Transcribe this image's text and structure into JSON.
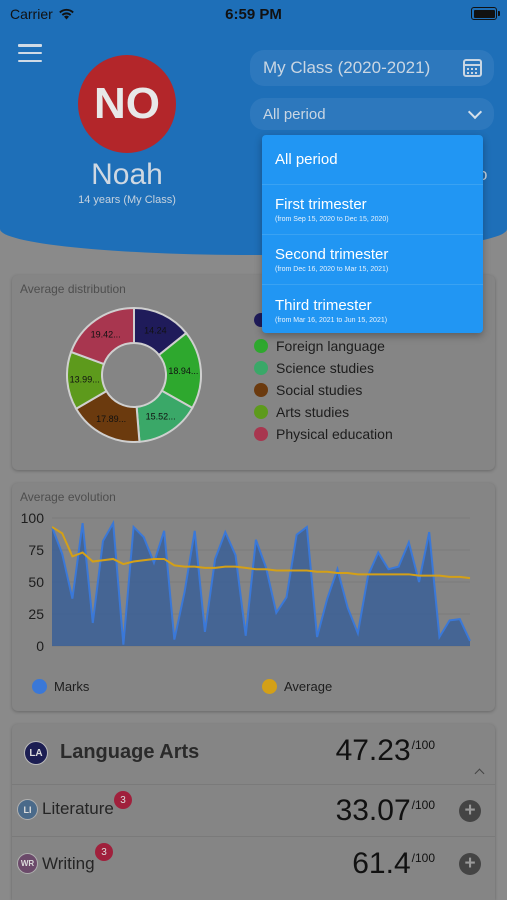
{
  "status_bar": {
    "carrier": "Carrier",
    "time": "6:59 PM"
  },
  "header": {
    "avatar_initials": "NO",
    "student_name": "Noah",
    "student_sub": "14 years (My Class)",
    "class_selector": "My Class (2020-2021)",
    "period_selector": "All period",
    "behind_letter": "o"
  },
  "colors": {
    "header_blue": "#1e6fb8",
    "dropdown_blue": "#2196f3",
    "marks_blue": "#3a78d8",
    "average_yellow": "#d4a017",
    "avatar_red": "#b3262a"
  },
  "dropdown": {
    "items": [
      {
        "label": "All period",
        "sub": ""
      },
      {
        "label": "First trimester",
        "sub": "(from Sep 15, 2020 to Dec 15, 2020)"
      },
      {
        "label": "Second trimester",
        "sub": "(from Dec 16, 2020 to Mar 15, 2021)"
      },
      {
        "label": "Third trimester",
        "sub": "(from Mar 16, 2021 to Jun 15, 2021)"
      }
    ]
  },
  "distribution": {
    "title": "Average distribution",
    "legend_visible": [
      "Foreign language",
      "Science studies",
      "Social studies",
      "Arts studies",
      "Physical education"
    ]
  },
  "evolution": {
    "title": "Average evolution",
    "legend": {
      "marks": "Marks",
      "average": "Average"
    }
  },
  "subjects": {
    "main": {
      "badge": "LA",
      "name": "Language Arts",
      "score": "47.23",
      "scale": "/100"
    },
    "literature": {
      "badge": "LI",
      "name": "Literature",
      "count": "3",
      "score": "33.07",
      "scale": "/100"
    },
    "writing": {
      "badge": "WR",
      "name": "Writing",
      "count": "3",
      "score": "61.4",
      "scale": "/100"
    }
  },
  "chart_data": [
    {
      "type": "pie",
      "title": "Average distribution",
      "categories": [
        "",
        "Foreign language",
        "Science studies",
        "Social studies",
        "Arts studies",
        "Physical education"
      ],
      "values": [
        14.24,
        18.94,
        15.52,
        17.89,
        13.99,
        19.42
      ],
      "labels": [
        "14.24",
        "18.94...",
        "15.52...",
        "17.89...",
        "13.99...",
        "19.42..."
      ],
      "colors": [
        "#1f1b5a",
        "#2ea82e",
        "#3aa868",
        "#6b3a0e",
        "#5d9a1c",
        "#a8364f"
      ]
    },
    {
      "type": "area",
      "title": "Average evolution",
      "ylim": [
        0,
        100
      ],
      "yticks": [
        0,
        25,
        50,
        75,
        100
      ],
      "series": [
        {
          "name": "Marks",
          "values": [
            93,
            72,
            37,
            96,
            18,
            82,
            96,
            1,
            93,
            85,
            65,
            90,
            5,
            42,
            90,
            11,
            68,
            89,
            71,
            8,
            83,
            61,
            26,
            38,
            87,
            93,
            7,
            37,
            60,
            30,
            10,
            55,
            73,
            60,
            62,
            81,
            50,
            89,
            7,
            20,
            21,
            4
          ],
          "color": "#3a78d8"
        },
        {
          "name": "Average",
          "values": [
            93,
            88,
            70,
            73,
            66,
            67,
            68,
            64,
            66,
            67,
            68,
            68,
            63,
            62,
            62,
            61,
            61,
            62,
            62,
            61,
            60,
            60,
            59,
            59,
            59,
            59,
            58,
            58,
            57,
            57,
            56,
            56,
            56,
            56,
            56,
            56,
            55,
            55,
            55,
            54,
            54,
            53
          ],
          "color": "#d4a017"
        }
      ]
    }
  ]
}
